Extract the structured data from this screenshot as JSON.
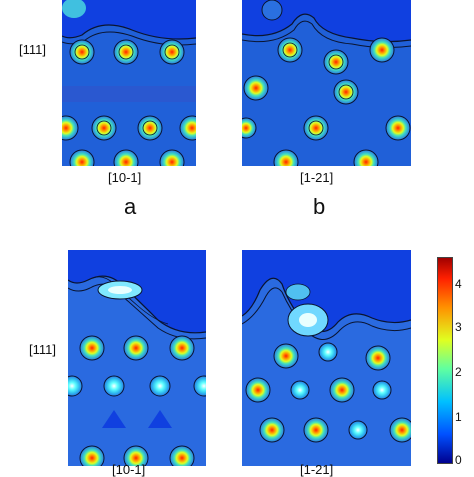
{
  "panels": [
    {
      "id": "a",
      "letter": "a",
      "direction_label": "[10-1]",
      "vertical_label": "[111]"
    },
    {
      "id": "b",
      "letter": "b",
      "direction_label": "[1-21]",
      "vertical_label": ""
    },
    {
      "id": "c",
      "letter": "",
      "direction_label": "[10-1]",
      "vertical_label": "[111]"
    },
    {
      "id": "d",
      "letter": "",
      "direction_label": "[1-21]",
      "vertical_label": ""
    }
  ],
  "colorbar": {
    "ticks": [
      "4",
      "3",
      "2",
      "1",
      "0"
    ],
    "range": [
      0,
      4.6
    ],
    "colors": [
      "#00008f",
      "#0050ff",
      "#00c0ff",
      "#60ffa0",
      "#e0ff20",
      "#ff9000",
      "#ff2000",
      "#a00000"
    ]
  },
  "palette": {
    "background": "#1f5fd8",
    "vacuum": "#1040e0",
    "contour": "#0a1430"
  }
}
